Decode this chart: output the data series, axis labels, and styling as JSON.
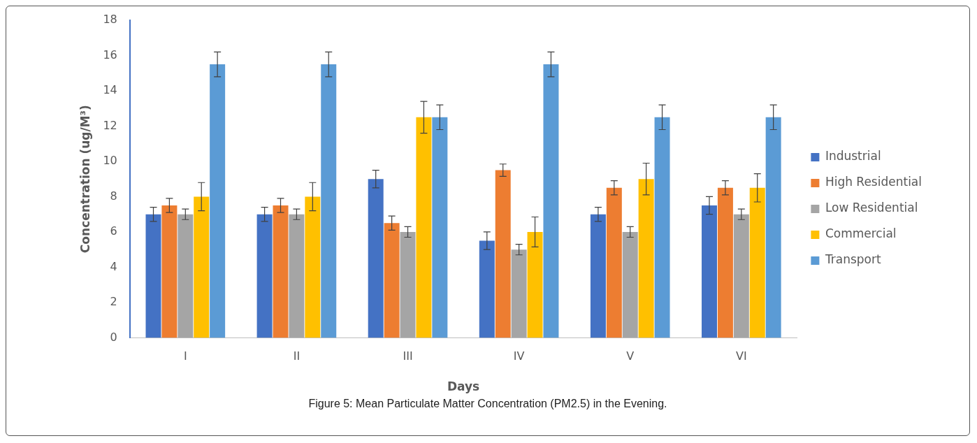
{
  "chart_data": {
    "type": "bar",
    "xlabel": "Days",
    "ylabel": "Concentration (ug/M³)",
    "categories": [
      "I",
      "II",
      "III",
      "IV",
      "V",
      "VI"
    ],
    "series": [
      {
        "name": "Industrial",
        "color": "#4472c4",
        "values": [
          7,
          7,
          9,
          5.5,
          7,
          7.5
        ],
        "errors": [
          0.4,
          0.4,
          0.5,
          0.5,
          0.4,
          0.5
        ]
      },
      {
        "name": "High Residential",
        "color": "#ed7d31",
        "values": [
          7.5,
          7.5,
          6.5,
          9.5,
          8.5,
          8.5
        ],
        "errors": [
          0.4,
          0.4,
          0.4,
          0.35,
          0.4,
          0.4
        ]
      },
      {
        "name": "Low Residential",
        "color": "#a5a5a5",
        "values": [
          7,
          7,
          6,
          5,
          6,
          7
        ],
        "errors": [
          0.3,
          0.3,
          0.3,
          0.3,
          0.3,
          0.3
        ]
      },
      {
        "name": "Commercial",
        "color": "#ffc000",
        "values": [
          8,
          8,
          12.5,
          6,
          9,
          8.5
        ],
        "errors": [
          0.8,
          0.8,
          0.9,
          0.85,
          0.9,
          0.8
        ]
      },
      {
        "name": "Transport",
        "color": "#5b9bd5",
        "values": [
          15.5,
          15.5,
          12.5,
          15.5,
          12.5,
          12.5
        ],
        "errors": [
          0.7,
          0.7,
          0.7,
          0.7,
          0.7,
          0.7
        ]
      }
    ],
    "ylim": [
      0,
      18
    ],
    "yticks": [
      0,
      2,
      4,
      6,
      8,
      10,
      12,
      14,
      16,
      18
    ],
    "grid": false,
    "legend": "right",
    "annotations": [
      "Figure 5: Mean Particulate Matter Concentration (PM2.5) in the Evening."
    ]
  }
}
